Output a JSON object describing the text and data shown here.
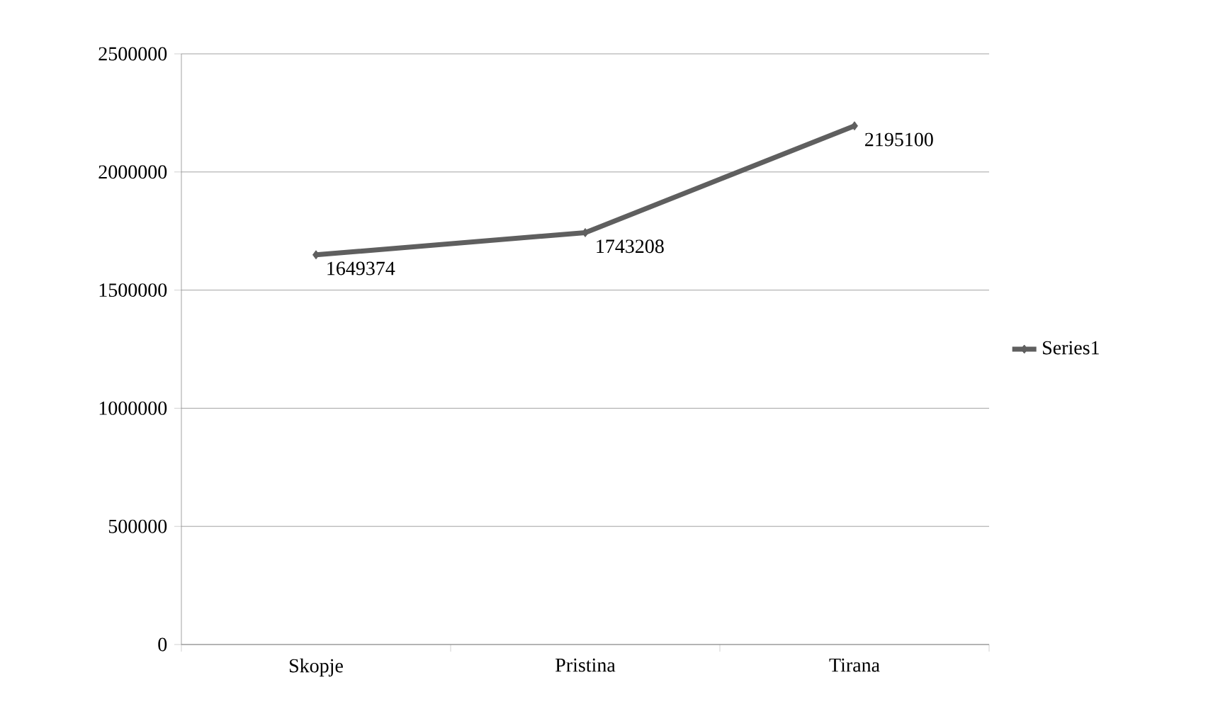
{
  "chart_data": {
    "type": "line",
    "categories": [
      "Skopje",
      "Pristina",
      "Tirana"
    ],
    "series": [
      {
        "name": "Series1",
        "color": "#5f5f5f",
        "values": [
          1649374,
          1743208,
          2195100
        ]
      }
    ],
    "ylim": [
      0,
      2500000
    ],
    "yticks": [
      0,
      500000,
      1000000,
      1500000,
      2000000,
      2500000
    ],
    "grid": "y",
    "legend": "right",
    "marker": "diamond",
    "data_labels": true
  }
}
